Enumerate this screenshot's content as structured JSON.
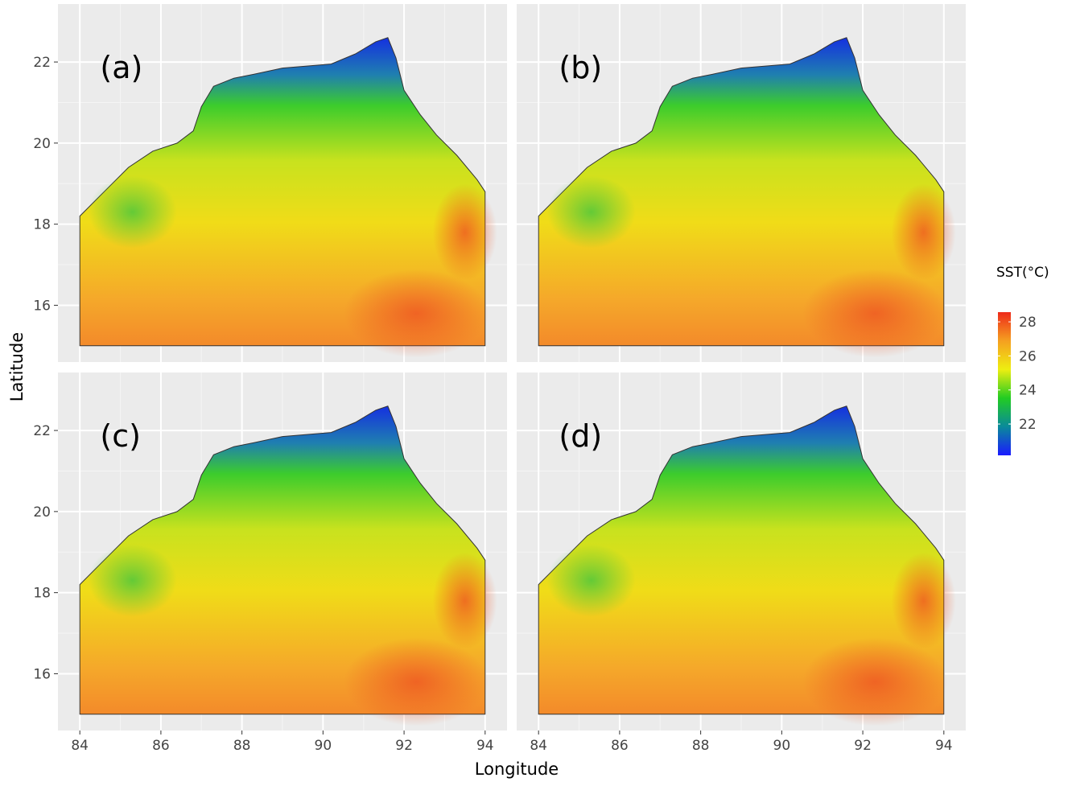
{
  "panels": [
    {
      "label": "(a)"
    },
    {
      "label": "(b)"
    },
    {
      "label": "(c)"
    },
    {
      "label": "(d)"
    }
  ],
  "x_axis": {
    "title": "Longitude",
    "ticks": [
      84,
      86,
      88,
      90,
      92,
      94
    ],
    "lim": [
      83.46,
      94.54
    ]
  },
  "y_axis": {
    "title": "Latitude",
    "ticks": [
      16,
      18,
      20,
      22
    ],
    "lim": [
      14.6,
      23.43
    ]
  },
  "colorbar": {
    "title": "SST(°C)",
    "ticks": [
      22,
      24,
      26,
      28
    ],
    "lim": [
      20.16,
      28.57
    ],
    "colors": [
      "#1a1aff",
      "#0a8a9a",
      "#22cc22",
      "#eeee11",
      "#f5a020",
      "#ee2a1a"
    ]
  }
}
